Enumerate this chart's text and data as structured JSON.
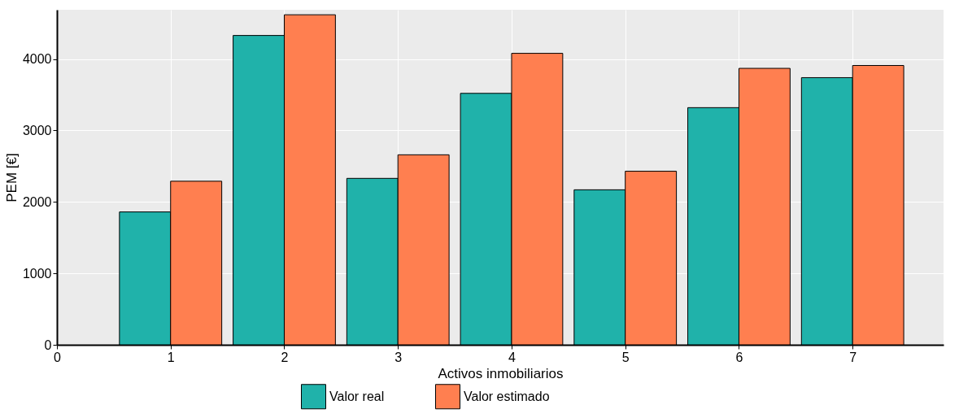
{
  "chart_data": {
    "type": "bar",
    "xlabel": "Activos inmobiliarios",
    "ylabel": "PEM [€]",
    "x": [
      1,
      2,
      3,
      4,
      5,
      6,
      7
    ],
    "series": [
      {
        "name": "Valor real",
        "color": "#20b2aa",
        "values": [
          1860,
          4330,
          2330,
          3520,
          2170,
          3320,
          3740
        ]
      },
      {
        "name": "Valor estimado",
        "color": "#ff7f50",
        "values": [
          2290,
          4620,
          2660,
          4080,
          2430,
          3870,
          3910
        ]
      }
    ],
    "xlim": [
      0,
      7.8
    ],
    "xticks": [
      0,
      1,
      2,
      3,
      4,
      5,
      6,
      7
    ],
    "ylim": [
      0,
      4690
    ],
    "yticks": [
      0,
      1000,
      2000,
      3000,
      4000
    ],
    "grid": true,
    "legend": "bottom"
  }
}
